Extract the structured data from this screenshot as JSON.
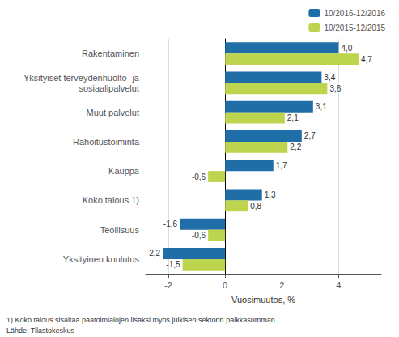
{
  "chart_data": {
    "type": "bar",
    "orientation": "horizontal",
    "categories": [
      "Rakentaminen",
      "Yksityiset terveydenhuolto- ja\nsosiaalipalvelut",
      "Muut palvelut",
      "Rahoitustoiminta",
      "Kauppa",
      "Koko talous 1)",
      "Teollisuus",
      "Yksityinen koulutus"
    ],
    "series": [
      {
        "name": "10/2016-12/2016",
        "color": "#1F6EA7",
        "values": [
          4.0,
          3.4,
          3.1,
          2.7,
          1.7,
          1.3,
          -1.6,
          -2.2
        ],
        "value_labels": [
          "4,0",
          "3,4",
          "3,1",
          "2,7",
          "1,7",
          "1,3",
          "-1,6",
          "-2,2"
        ]
      },
      {
        "name": "10/2015-12/2015",
        "color": "#BDD44E",
        "values": [
          4.7,
          3.6,
          2.1,
          2.2,
          -0.6,
          0.8,
          -0.6,
          -1.5
        ],
        "value_labels": [
          "4,7",
          "3,6",
          "2,1",
          "2,2",
          "-0,6",
          "0,8",
          "-0,6",
          "-1,5"
        ]
      }
    ],
    "xlabel": "Vuosimuutos, %",
    "xlim": [
      -2.8,
      5.5
    ],
    "xticks": [
      -2,
      0,
      2,
      4
    ],
    "grid": true,
    "legend": "upper right",
    "data_labels": true,
    "annotations": [
      "1) Koko talous sisältää päätoimialojen lisäksi myös julkisen sektorin palkkasumman",
      "Lähde: Tilastokeskus"
    ]
  }
}
